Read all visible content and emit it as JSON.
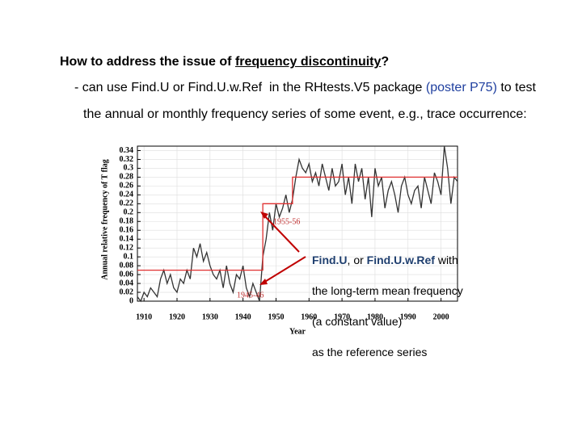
{
  "heading": {
    "text": "How to address the issue of ",
    "underlined": "frequency discontinuity",
    "end": "?"
  },
  "bullet": {
    "line1": "- can use Find.U or Find.U.w.Ref  in the RHtests.V5 package ",
    "link": "(poster P75)",
    "line1_end": " to test",
    "line2": "the annual or monthly frequency series of some event, e.g., trace occurrence:"
  },
  "note": {
    "first": [
      "Find.U",
      ", or ",
      "Find.U.w.Ref",
      " with"
    ],
    "lines": [
      "the long-term mean frequency",
      "(a constant value)",
      "as the reference series"
    ]
  },
  "chart_data": {
    "type": "line",
    "xlabel": "Year",
    "ylabel": "Annual relative frequency of T flag",
    "xlim": [
      1908,
      2005
    ],
    "xticks": [
      1910,
      1920,
      1930,
      1940,
      1950,
      1960,
      1970,
      1980,
      1990,
      2000
    ],
    "ylim": [
      0,
      0.35
    ],
    "yticks": [
      0,
      0.02,
      0.04,
      0.06,
      0.08,
      0.1,
      0.12,
      0.14,
      0.16,
      0.18,
      0.2,
      0.22,
      0.24,
      0.26,
      0.28,
      0.3,
      0.32,
      0.34
    ],
    "grid": true,
    "annotations": [
      "1955-56",
      "1945-46"
    ],
    "series": [
      {
        "color": "#333333",
        "x": [
          1908,
          1909,
          1910,
          1911,
          1912,
          1913,
          1914,
          1915,
          1916,
          1917,
          1918,
          1919,
          1920,
          1921,
          1922,
          1923,
          1924,
          1925,
          1926,
          1927,
          1928,
          1929,
          1930,
          1931,
          1932,
          1933,
          1934,
          1935,
          1936,
          1937,
          1938,
          1939,
          1940,
          1941,
          1942,
          1943,
          1944,
          1945,
          1946,
          1947,
          1948,
          1949,
          1950,
          1951,
          1952,
          1953,
          1954,
          1955,
          1956,
          1957,
          1958,
          1959,
          1960,
          1961,
          1962,
          1963,
          1964,
          1965,
          1966,
          1967,
          1968,
          1969,
          1970,
          1971,
          1972,
          1973,
          1974,
          1975,
          1976,
          1977,
          1978,
          1979,
          1980,
          1981,
          1982,
          1983,
          1984,
          1985,
          1986,
          1987,
          1988,
          1989,
          1990,
          1991,
          1992,
          1993,
          1994,
          1995,
          1996,
          1997,
          1998,
          1999,
          2000,
          2001,
          2002,
          2003,
          2004,
          2005
        ],
        "values": [
          0.01,
          0,
          0.02,
          0.01,
          0.03,
          0.02,
          0.01,
          0.05,
          0.07,
          0.04,
          0.06,
          0.03,
          0.02,
          0.05,
          0.04,
          0.07,
          0.05,
          0.12,
          0.1,
          0.13,
          0.09,
          0.11,
          0.08,
          0.06,
          0.05,
          0.07,
          0.03,
          0.08,
          0.04,
          0.02,
          0.06,
          0.05,
          0.08,
          0.03,
          0.01,
          0.04,
          0.02,
          0,
          0.1,
          0.14,
          0.2,
          0.16,
          0.22,
          0.19,
          0.21,
          0.24,
          0.2,
          0.23,
          0.28,
          0.32,
          0.3,
          0.29,
          0.31,
          0.27,
          0.29,
          0.26,
          0.31,
          0.28,
          0.25,
          0.3,
          0.26,
          0.27,
          0.31,
          0.24,
          0.28,
          0.22,
          0.31,
          0.27,
          0.3,
          0.23,
          0.28,
          0.19,
          0.3,
          0.26,
          0.28,
          0.21,
          0.25,
          0.27,
          0.24,
          0.2,
          0.26,
          0.28,
          0.24,
          0.22,
          0.25,
          0.26,
          0.21,
          0.28,
          0.25,
          0.22,
          0.29,
          0.27,
          0.24,
          0.35,
          0.3,
          0.22,
          0.28,
          0.27
        ]
      },
      {
        "color": "#e03030",
        "x": [
          1908,
          1946,
          1946,
          1955,
          1955,
          2005
        ],
        "values": [
          0.07,
          0.07,
          0.22,
          0.22,
          0.28,
          0.28
        ]
      }
    ]
  }
}
